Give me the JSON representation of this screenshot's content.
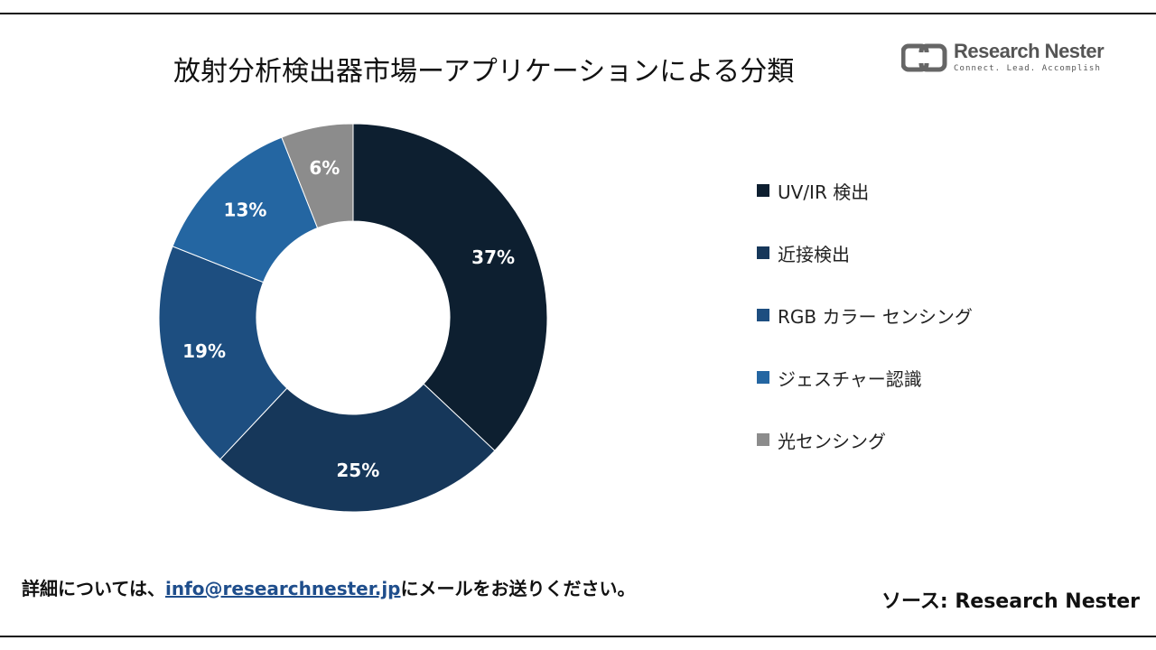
{
  "header": {
    "title": "放射分析検出器市場ーアプリケーションによる分類"
  },
  "logo": {
    "icon": "research-nester-logo-icon",
    "name": "Research Nester",
    "tagline": "Connect. Lead. Accomplish"
  },
  "chart_data": {
    "type": "pie",
    "variant": "donut",
    "title": "放射分析検出器市場ーアプリケーションによる分類",
    "unit": "%",
    "legend_position": "right",
    "slices": [
      {
        "label": "UV/IR 検出",
        "value": 37,
        "value_label": "37%",
        "color": "#0d1f30"
      },
      {
        "label": "近接検出",
        "value": 25,
        "value_label": "25%",
        "color": "#16375a"
      },
      {
        "label": "RGB カラー センシング",
        "value": 19,
        "value_label": "19%",
        "color": "#1d4e80"
      },
      {
        "label": "ジェスチャー認識",
        "value": 13,
        "value_label": "13%",
        "color": "#2466a2"
      },
      {
        "label": "光センシング",
        "value": 6,
        "value_label": "6%",
        "color": "#8c8c8c"
      }
    ]
  },
  "footer": {
    "note_prefix": "詳細については、",
    "email": "info@researchnester.jp",
    "note_suffix": "にメールをお送りください。",
    "source": "ソース: Research Nester"
  }
}
